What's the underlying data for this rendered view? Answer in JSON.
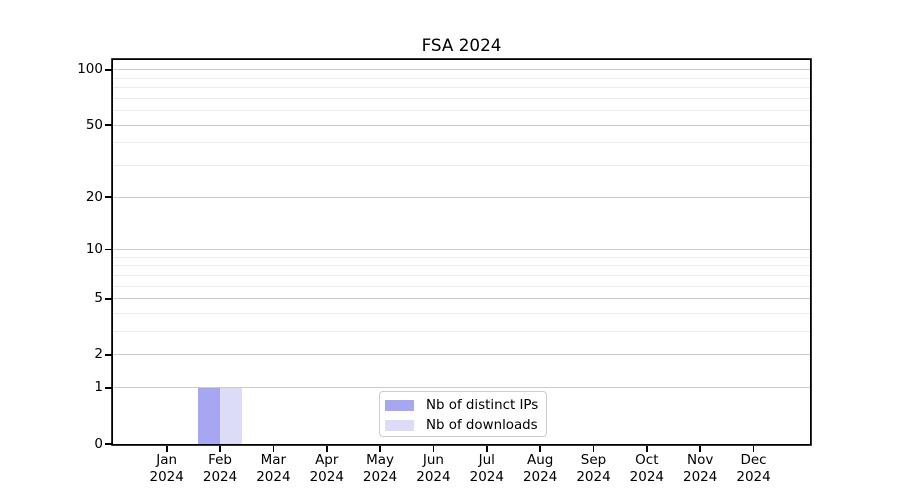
{
  "chart_data": {
    "type": "bar",
    "title": "FSA 2024",
    "y_scale": "log1p",
    "grid": "horizontal-only",
    "legend_position": "lower-center",
    "x_tick_labels": [
      {
        "line1": "Jan",
        "line2": "2024"
      },
      {
        "line1": "Feb",
        "line2": "2024"
      },
      {
        "line1": "Mar",
        "line2": "2024"
      },
      {
        "line1": "Apr",
        "line2": "2024"
      },
      {
        "line1": "May",
        "line2": "2024"
      },
      {
        "line1": "Jun",
        "line2": "2024"
      },
      {
        "line1": "Jul",
        "line2": "2024"
      },
      {
        "line1": "Aug",
        "line2": "2024"
      },
      {
        "line1": "Sep",
        "line2": "2024"
      },
      {
        "line1": "Oct",
        "line2": "2024"
      },
      {
        "line1": "Nov",
        "line2": "2024"
      },
      {
        "line1": "Dec",
        "line2": "2024"
      }
    ],
    "series": [
      {
        "name": "Nb of distinct IPs",
        "color": "#a6a6f1",
        "values": [
          0,
          1,
          0,
          0,
          0,
          0,
          0,
          0,
          0,
          0,
          0,
          0
        ]
      },
      {
        "name": "Nb of downloads",
        "color": "#dcdcf8",
        "values": [
          0,
          1,
          0,
          0,
          0,
          0,
          0,
          0,
          0,
          0,
          0,
          0
        ]
      }
    ],
    "y_axis": {
      "major_ticks": [
        0,
        1,
        2,
        5,
        10,
        20,
        50,
        100
      ],
      "minor_ticks": [
        3,
        4,
        6,
        7,
        8,
        9,
        30,
        40,
        60,
        70,
        80,
        90
      ],
      "top_value": 113
    },
    "colors": {
      "grid_major": "#cccccc",
      "grid_minor": "#ebebeb",
      "axis": "#000000",
      "background": "#ffffff"
    }
  }
}
